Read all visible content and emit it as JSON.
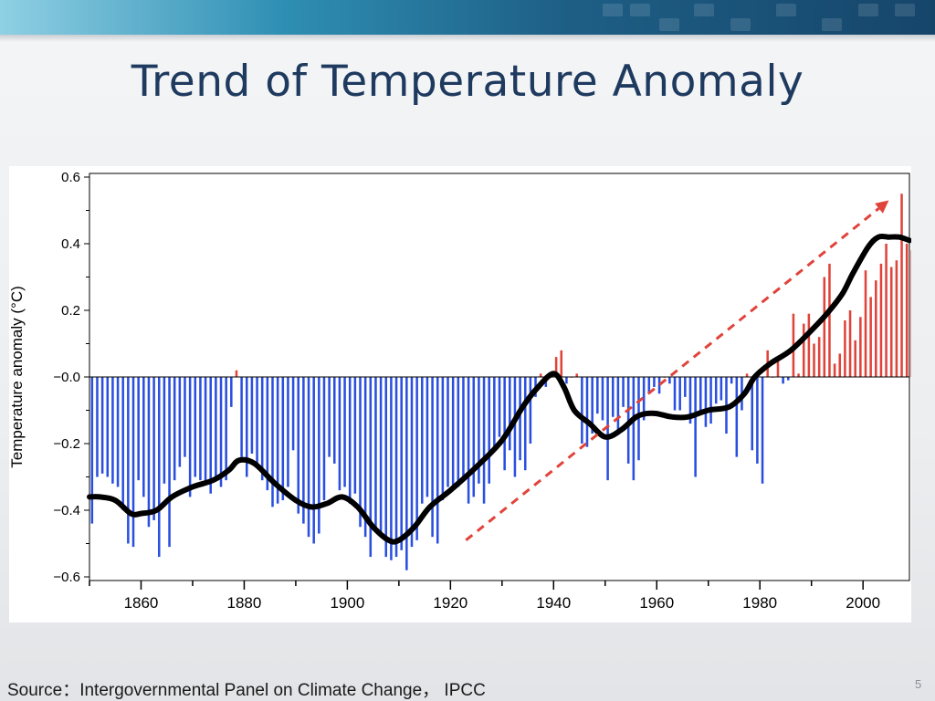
{
  "slide": {
    "title": "Trend of Temperature Anomaly",
    "source": "Source：Intergovernmental Panel on Climate Change， IPCC",
    "page_number": "5"
  },
  "colors": {
    "title": "#1f3a5f",
    "negative_bar": "#2a4fe0",
    "positive_bar": "#e0433a",
    "smooth_line": "#000000",
    "trend_arrow": "#e0433a"
  },
  "chart_data": {
    "type": "bar",
    "title": "",
    "xlabel": "",
    "ylabel": "Temperature anomaly (°C)",
    "xlim": [
      1850,
      2009
    ],
    "ylim": [
      -0.6,
      0.6
    ],
    "y_ticks": [
      0.6,
      0.4,
      0.2,
      0.0,
      -0.2,
      -0.4,
      -0.6
    ],
    "y_tick_labels": [
      "0.6",
      "0.4",
      "0.2",
      "−0.0",
      "−0.2",
      "−0.4",
      "−0.6"
    ],
    "x_ticks": [
      1860,
      1880,
      1900,
      1920,
      1940,
      1960,
      1980,
      2000
    ],
    "x_tick_labels": [
      "1860",
      "1880",
      "1900",
      "1920",
      "1940",
      "1960",
      "1980",
      "2000"
    ],
    "series": [
      {
        "name": "Annual anomaly",
        "x_start": 1850,
        "values": [
          -0.44,
          -0.3,
          -0.29,
          -0.3,
          -0.32,
          -0.33,
          -0.4,
          -0.5,
          -0.51,
          -0.31,
          -0.36,
          -0.45,
          -0.43,
          -0.54,
          -0.32,
          -0.51,
          -0.31,
          -0.27,
          -0.24,
          -0.36,
          -0.3,
          -0.31,
          -0.32,
          -0.35,
          -0.3,
          -0.33,
          -0.31,
          -0.09,
          0.02,
          -0.24,
          -0.3,
          -0.23,
          -0.27,
          -0.31,
          -0.34,
          -0.39,
          -0.38,
          -0.37,
          -0.33,
          -0.22,
          -0.41,
          -0.44,
          -0.48,
          -0.5,
          -0.47,
          -0.37,
          -0.24,
          -0.26,
          -0.34,
          -0.33,
          -0.38,
          -0.35,
          -0.45,
          -0.48,
          -0.54,
          -0.45,
          -0.48,
          -0.54,
          -0.55,
          -0.54,
          -0.52,
          -0.58,
          -0.51,
          -0.49,
          -0.38,
          -0.36,
          -0.48,
          -0.5,
          -0.37,
          -0.33,
          -0.34,
          -0.33,
          -0.3,
          -0.38,
          -0.36,
          -0.32,
          -0.38,
          -0.32,
          -0.22,
          -0.18,
          -0.28,
          -0.22,
          -0.3,
          -0.25,
          -0.28,
          -0.2,
          -0.06,
          0.01,
          -0.03,
          0.0,
          0.06,
          0.08,
          -0.02,
          0.0,
          0.01,
          -0.2,
          -0.21,
          -0.17,
          -0.11,
          -0.13,
          -0.31,
          -0.12,
          -0.17,
          -0.09,
          -0.26,
          -0.31,
          -0.25,
          -0.13,
          -0.05,
          -0.03,
          -0.05,
          0.0,
          -0.02,
          -0.1,
          -0.1,
          -0.06,
          -0.14,
          -0.3,
          -0.1,
          -0.15,
          -0.14,
          -0.08,
          -0.07,
          -0.17,
          -0.02,
          -0.24,
          -0.1,
          0.01,
          -0.22,
          -0.26,
          -0.32,
          0.08,
          0.0,
          0.05,
          -0.02,
          -0.01,
          0.19,
          0.01,
          0.16,
          0.19,
          0.1,
          0.12,
          0.3,
          0.34,
          0.04,
          0.07,
          0.17,
          0.2,
          0.11,
          0.18,
          0.32,
          0.24,
          0.29,
          0.34,
          0.4,
          0.33,
          0.35,
          0.55,
          0.4,
          0.38,
          0.45,
          0.47,
          0.44,
          0.48,
          0.43,
          0.42,
          0.4,
          0.46,
          0.48,
          0.36,
          0.41,
          0.33
        ]
      },
      {
        "name": "Smoothed curve",
        "x": [
          1850,
          1852,
          1855,
          1858,
          1860,
          1863,
          1866,
          1870,
          1874,
          1877,
          1879,
          1882,
          1886,
          1890,
          1893,
          1896,
          1899,
          1902,
          1905,
          1908,
          1910,
          1913,
          1916,
          1920,
          1925,
          1930,
          1934,
          1937,
          1940,
          1942,
          1944,
          1947,
          1950,
          1953,
          1956,
          1958,
          1960,
          1963,
          1966,
          1970,
          1974,
          1977,
          1979,
          1982,
          1986,
          1990,
          1993,
          1996,
          1998,
          2001,
          2003,
          2005,
          2007,
          2009
        ],
        "values": [
          -0.36,
          -0.36,
          -0.37,
          -0.41,
          -0.41,
          -0.4,
          -0.36,
          -0.33,
          -0.31,
          -0.28,
          -0.25,
          -0.26,
          -0.32,
          -0.37,
          -0.39,
          -0.38,
          -0.36,
          -0.39,
          -0.45,
          -0.49,
          -0.49,
          -0.45,
          -0.39,
          -0.34,
          -0.27,
          -0.19,
          -0.09,
          -0.03,
          0.01,
          -0.03,
          -0.1,
          -0.14,
          -0.18,
          -0.16,
          -0.12,
          -0.11,
          -0.11,
          -0.12,
          -0.12,
          -0.1,
          -0.09,
          -0.05,
          0.0,
          0.04,
          0.08,
          0.14,
          0.19,
          0.25,
          0.31,
          0.39,
          0.42,
          0.42,
          0.42,
          0.41
        ]
      }
    ],
    "annotations": [
      {
        "type": "trend_arrow",
        "from": [
          1923,
          -0.49
        ],
        "to": [
          2005,
          0.53
        ],
        "style": "dashed"
      }
    ]
  }
}
